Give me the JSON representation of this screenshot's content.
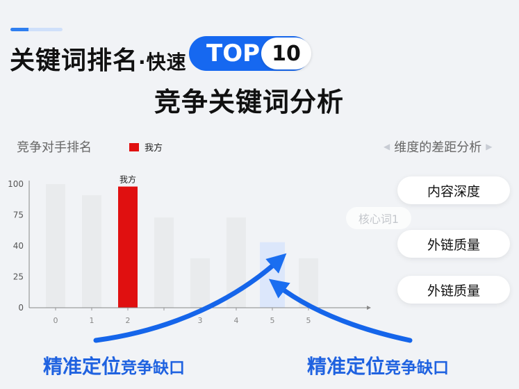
{
  "header": {
    "title_main": "关键词排名",
    "title_dot": "·快速",
    "top_label": "TOP",
    "top_number": "10",
    "subtitle": "竞争关键词分析"
  },
  "chart_section": {
    "label": "竞争对手排名",
    "legend_label": "我方"
  },
  "right_panel": {
    "title": "维度的差距分析",
    "arrow_left": "◀",
    "arrow_right": "▶",
    "buttons": [
      "内容深度",
      "外链质量",
      "外链质量"
    ],
    "core_tag": "核心词1"
  },
  "bottom": {
    "left_big": "精准定位",
    "left_small": "竞争缺口",
    "right_big": "精准定位",
    "right_small": "竞争缺口"
  },
  "colors": {
    "accent": "#1668f0",
    "highlight": "#e01010",
    "bar": "#e9ebed"
  },
  "chart_data": {
    "type": "bar",
    "categories": [
      "0",
      "1",
      "2",
      "",
      "3",
      "4",
      "5",
      "5"
    ],
    "values": [
      100,
      91,
      98,
      73,
      40,
      73,
      53,
      40
    ],
    "highlight_index": 2,
    "highlight_label": "我方",
    "gap_index": 6,
    "ytick_labels": [
      "0",
      "25",
      "40",
      "75",
      "100"
    ],
    "ylim": [
      0,
      100
    ],
    "grid": false
  }
}
